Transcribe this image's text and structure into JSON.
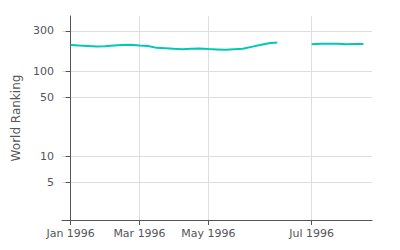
{
  "chart_data": {
    "type": "line",
    "ylabel": "World Ranking",
    "x": [
      0,
      0.5,
      1,
      1.5,
      2,
      2.5,
      3,
      3.5,
      4,
      4.5,
      5,
      5.5,
      6,
      6.5,
      7,
      7.5,
      8,
      8.5,
      9,
      9.5,
      10,
      10.5,
      11,
      11.5,
      12,
      null,
      14,
      14.5,
      15,
      15.5,
      16,
      16.5,
      17
    ],
    "values": [
      205,
      202,
      200,
      197,
      199,
      202,
      205,
      207,
      203,
      200,
      190,
      188,
      185,
      183,
      185,
      187,
      184,
      182,
      180,
      183,
      185,
      195,
      205,
      215,
      220,
      null,
      210,
      212,
      213,
      212,
      210,
      211,
      211
    ],
    "color": "#00c8b4",
    "log": "y",
    "xlim": [
      -0.5,
      17.5
    ],
    "xticks": [
      {
        "value": 0,
        "label": "Jan 1996"
      },
      {
        "value": 4,
        "label": "Mar 1996"
      },
      {
        "value": 8,
        "label": "May 1996"
      },
      {
        "value": 14,
        "label": "Jul 1996"
      }
    ],
    "ylim": [
      1.8,
      450
    ],
    "yticks": [
      5,
      10,
      50,
      100,
      300
    ],
    "grid": true
  }
}
